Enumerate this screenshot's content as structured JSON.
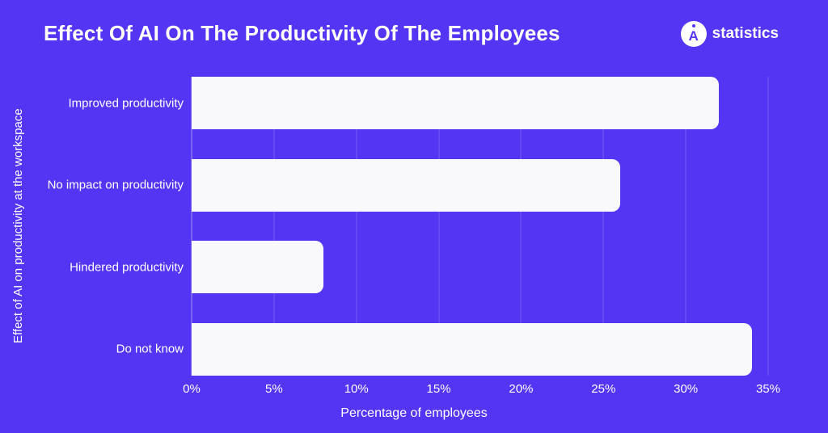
{
  "brand": {
    "name": "statistics",
    "logo_letter": "A"
  },
  "chart_data": {
    "type": "bar",
    "orientation": "horizontal",
    "title": "Effect Of AI On The Productivity Of The Employees",
    "categories": [
      "Improved productivity",
      "No impact on productivity",
      "Hindered productivity",
      "Do not know"
    ],
    "values": [
      32,
      26,
      8,
      34
    ],
    "unit": "%",
    "xlabel": "Percentage of employees",
    "ylabel": "Effect of AI on productivity at the workspace",
    "xlim": [
      0,
      35
    ],
    "xticks": [
      "0%",
      "5%",
      "10%",
      "15%",
      "20%",
      "25%",
      "30%",
      "35%"
    ],
    "grid": "vertical-only",
    "legend": "none",
    "colors": {
      "background": "#5435f3",
      "bar": "#f9f9fb",
      "text": "#ffffff",
      "gridline": "rgba(255,255,255,0.20)",
      "axisline": "rgba(255,255,255,0.45)"
    }
  }
}
